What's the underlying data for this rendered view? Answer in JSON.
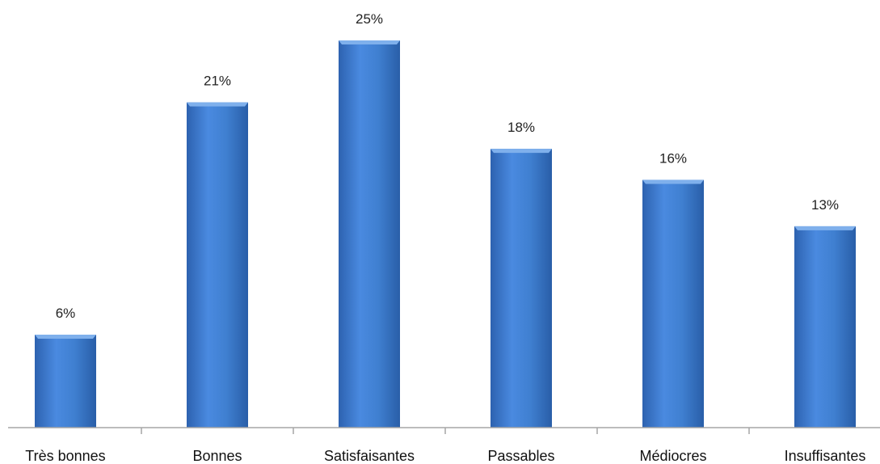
{
  "chart_data": {
    "type": "bar",
    "categories": [
      "Très bonnes",
      "Bonnes",
      "Satisfaisantes",
      "Passables",
      "Médiocres",
      "Insuffisantes"
    ],
    "values": [
      6,
      21,
      25,
      18,
      16,
      13
    ],
    "data_labels": [
      "6%",
      "21%",
      "25%",
      "18%",
      "16%",
      "13%"
    ],
    "value_unit": "%",
    "ylim": [
      0,
      25
    ],
    "grid": false,
    "legend": "none",
    "bar_color": "#3f7fd0",
    "bar_top_color": "#7fb0ec",
    "axis_color": "#a6a6a6"
  }
}
